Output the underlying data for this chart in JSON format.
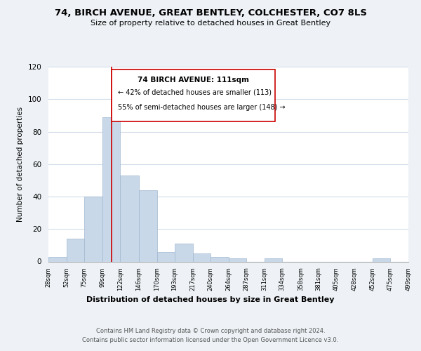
{
  "title": "74, BIRCH AVENUE, GREAT BENTLEY, COLCHESTER, CO7 8LS",
  "subtitle": "Size of property relative to detached houses in Great Bentley",
  "xlabel": "Distribution of detached houses by size in Great Bentley",
  "ylabel": "Number of detached properties",
  "bar_color": "#c8d8e8",
  "bar_edgecolor": "#a0b8d0",
  "vline_x": 111,
  "vline_color": "#cc0000",
  "annotation_title": "74 BIRCH AVENUE: 111sqm",
  "annotation_line1": "← 42% of detached houses are smaller (113)",
  "annotation_line2": "55% of semi-detached houses are larger (148) →",
  "annotation_box_edgecolor": "#cc0000",
  "bin_edges": [
    28,
    52,
    75,
    99,
    122,
    146,
    170,
    193,
    217,
    240,
    264,
    287,
    311,
    334,
    358,
    381,
    405,
    428,
    452,
    475,
    499
  ],
  "bin_heights": [
    3,
    14,
    40,
    89,
    53,
    44,
    6,
    11,
    5,
    3,
    2,
    0,
    2,
    0,
    0,
    0,
    0,
    0,
    2,
    0
  ],
  "xlim": [
    28,
    499
  ],
  "ylim": [
    0,
    120
  ],
  "yticks": [
    0,
    20,
    40,
    60,
    80,
    100,
    120
  ],
  "xtick_labels": [
    "28sqm",
    "52sqm",
    "75sqm",
    "99sqm",
    "122sqm",
    "146sqm",
    "170sqm",
    "193sqm",
    "217sqm",
    "240sqm",
    "264sqm",
    "287sqm",
    "311sqm",
    "334sqm",
    "358sqm",
    "381sqm",
    "405sqm",
    "428sqm",
    "452sqm",
    "475sqm",
    "499sqm"
  ],
  "footer1": "Contains HM Land Registry data © Crown copyright and database right 2024.",
  "footer2": "Contains public sector information licensed under the Open Government Licence v3.0.",
  "background_color": "#eef2f6",
  "plot_background": "#ffffff",
  "grid_color": "#d0dce8"
}
